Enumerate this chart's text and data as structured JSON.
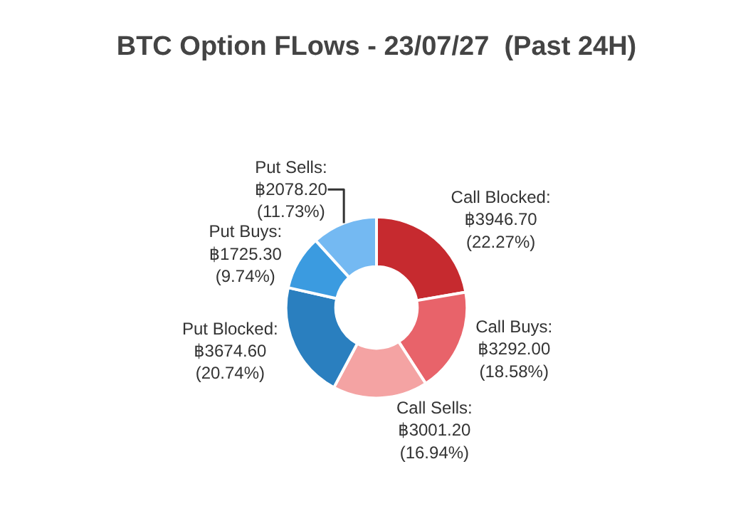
{
  "chart_data": {
    "type": "donut",
    "title": "BTC Option FLows - 23/07/27  (Past 24H)",
    "categories": [
      "Call Blocked",
      "Call Buys",
      "Call Sells",
      "Put Blocked",
      "Put Buys",
      "Put Sells"
    ],
    "values": [
      3946.7,
      3292.0,
      3001.2,
      3674.6,
      1725.3,
      2078.2
    ],
    "value_labels": [
      ":\n฿3946.70\n(22.27%)",
      ":\n฿3292.00\n(18.58%)",
      ":\n฿3001.20\n(16.94%)",
      ":\n฿3674.60\n(20.74%)",
      ":\n฿1725.30\n(9.74%)",
      ":\n฿2078.20\n(11.73%)"
    ],
    "colors": [
      "#c62a2f",
      "#e8636a",
      "#f4a3a3",
      "#2a7fbf",
      "#3b9be0",
      "#74b9f2"
    ],
    "legend": false
  }
}
